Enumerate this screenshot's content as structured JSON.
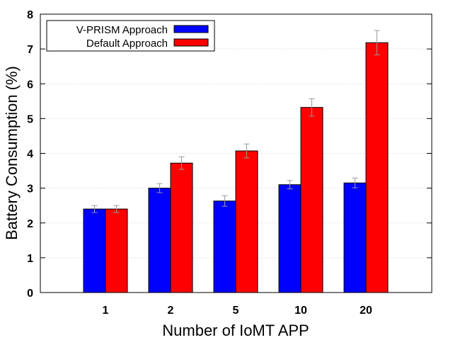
{
  "chart_data": {
    "type": "bar",
    "title": "",
    "xlabel": "Number of IoMT APP",
    "ylabel": "Battery Consumption (%)",
    "categories": [
      "1",
      "2",
      "5",
      "10",
      "20"
    ],
    "ylim": [
      0,
      8
    ],
    "yticks": [
      0,
      1,
      2,
      3,
      4,
      5,
      6,
      7,
      8
    ],
    "grid": true,
    "legend_position": "top-left",
    "series": [
      {
        "name": "V-PRISM Approach",
        "color": "#0000ff",
        "values": [
          2.4,
          3.0,
          2.63,
          3.1,
          3.15
        ],
        "error": [
          0.1,
          0.13,
          0.15,
          0.12,
          0.14
        ]
      },
      {
        "name": "Default Approach",
        "color": "#ff0000",
        "values": [
          2.4,
          3.72,
          4.07,
          5.32,
          7.18
        ],
        "error": [
          0.1,
          0.18,
          0.2,
          0.25,
          0.35
        ]
      }
    ]
  }
}
